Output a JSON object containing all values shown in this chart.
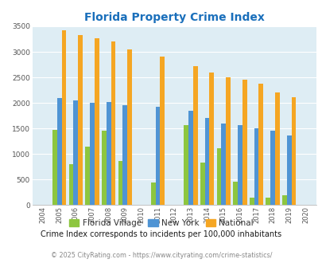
{
  "title": "Florida Property Crime Index",
  "subtitle": "Crime Index corresponds to incidents per 100,000 inhabitants",
  "footer": "© 2025 CityRating.com - https://www.cityrating.com/crime-statistics/",
  "years": [
    2004,
    2005,
    2006,
    2007,
    2008,
    2009,
    2010,
    2011,
    2012,
    2013,
    2014,
    2015,
    2016,
    2017,
    2018,
    2019,
    2020
  ],
  "florida_village": [
    0,
    1470,
    800,
    1140,
    1450,
    860,
    0,
    450,
    0,
    1560,
    840,
    1110,
    460,
    140,
    140,
    195,
    0
  ],
  "new_york": [
    0,
    2090,
    2050,
    2000,
    2020,
    1950,
    0,
    1920,
    0,
    1840,
    1700,
    1600,
    1560,
    1510,
    1460,
    1370,
    0
  ],
  "national": [
    0,
    3420,
    3330,
    3260,
    3210,
    3040,
    0,
    2900,
    0,
    2720,
    2600,
    2500,
    2460,
    2370,
    2200,
    2110,
    0
  ],
  "florida_color": "#8dc63f",
  "newyork_color": "#4f94d4",
  "national_color": "#f5a623",
  "bg_color": "#deedf4",
  "title_color": "#1a6fbb",
  "subtitle_color": "#1a1a1a",
  "footer_color": "#888888",
  "ylim": [
    0,
    3500
  ],
  "yticks": [
    0,
    500,
    1000,
    1500,
    2000,
    2500,
    3000,
    3500
  ]
}
